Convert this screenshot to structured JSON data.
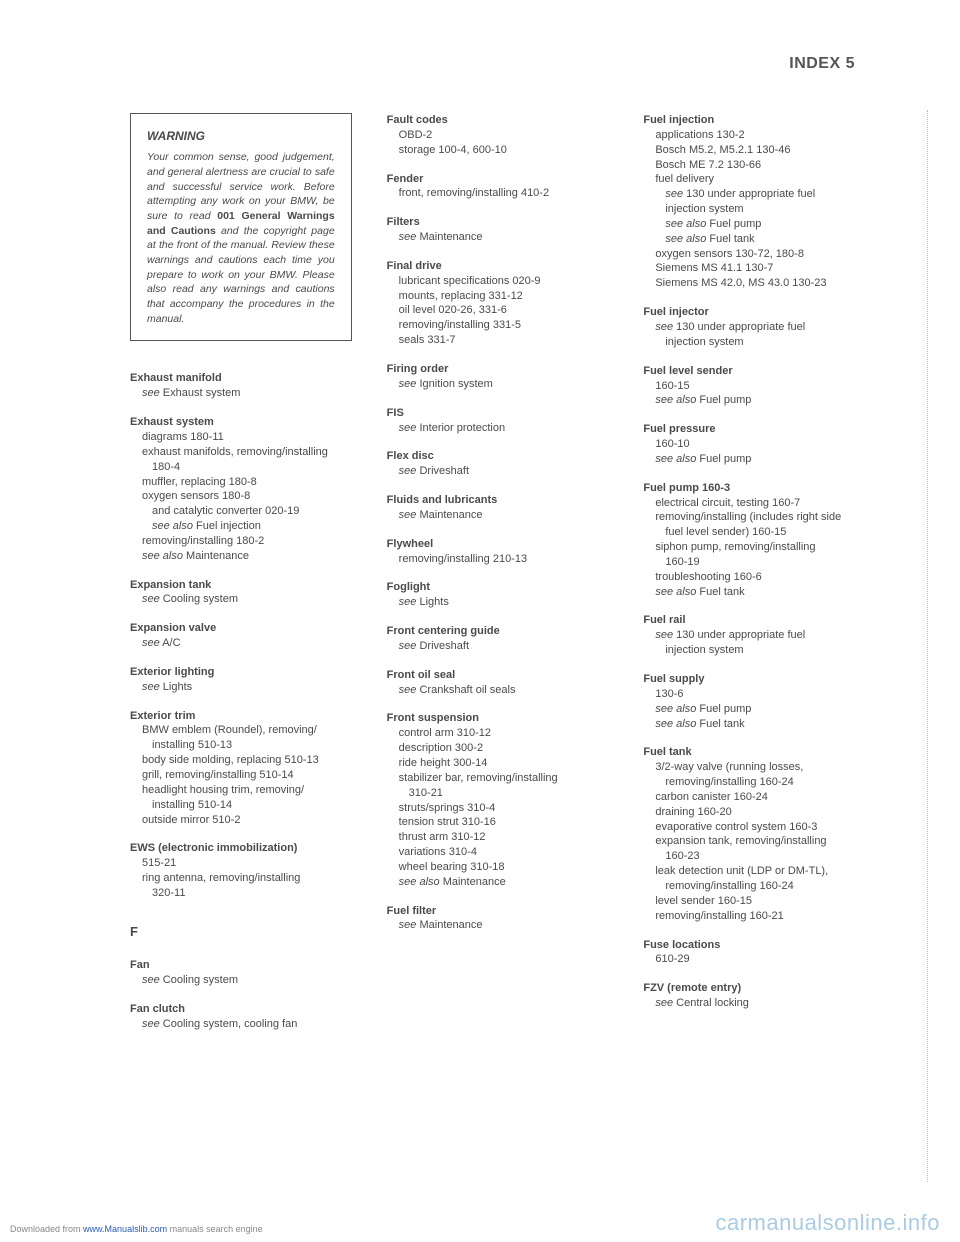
{
  "header": {
    "text": "INDEX  5"
  },
  "warning": {
    "title": "WARNING",
    "text_pre": "Your common sense, good judgement, and general alertness are crucial to safe and successful service work. Before attempting any work on your BMW, be sure to read ",
    "bold1": "001 General Warnings and Cautions",
    "text_post": " and the copyright page at the front of the manual. Review these warnings and cautions each time you prepare to work on your BMW. Please also read any warnings and cautions that accompany the procedures in the manual."
  },
  "col1": [
    {
      "t": "Exhaust manifold",
      "lines": [
        {
          "txt": "see",
          "ital": true,
          "cont": " Exhaust system"
        }
      ]
    },
    {
      "t": "Exhaust system",
      "lines": [
        {
          "txt": "diagrams 180-11"
        },
        {
          "txt": "exhaust manifolds, removing/installing"
        },
        {
          "txt": "180-4",
          "indent": 2
        },
        {
          "txt": "muffler, replacing 180-8"
        },
        {
          "txt": "oxygen sensors 180-8"
        },
        {
          "txt": "and catalytic converter 020-19",
          "indent": 2
        },
        {
          "txt": "see also",
          "ital": true,
          "cont": " Fuel injection",
          "indent": 2
        },
        {
          "txt": "removing/installing 180-2"
        },
        {
          "txt": "see also",
          "ital": true,
          "cont": " Maintenance"
        }
      ]
    },
    {
      "t": "Expansion tank",
      "lines": [
        {
          "txt": "see",
          "ital": true,
          "cont": " Cooling system"
        }
      ]
    },
    {
      "t": "Expansion valve",
      "lines": [
        {
          "txt": "see",
          "ital": true,
          "cont": " A/C"
        }
      ]
    },
    {
      "t": "Exterior lighting",
      "lines": [
        {
          "txt": "see",
          "ital": true,
          "cont": " Lights"
        }
      ]
    },
    {
      "t": "Exterior trim",
      "lines": [
        {
          "txt": "BMW emblem (Roundel), removing/"
        },
        {
          "txt": "installing 510-13",
          "indent": 2
        },
        {
          "txt": "body side molding, replacing 510-13"
        },
        {
          "txt": "grill, removing/installing 510-14"
        },
        {
          "txt": "headlight housing trim, removing/"
        },
        {
          "txt": "installing 510-14",
          "indent": 2
        },
        {
          "txt": "outside mirror 510-2"
        }
      ]
    },
    {
      "t": "EWS (electronic immobilization)",
      "lines": [
        {
          "txt": "515-21"
        },
        {
          "txt": "ring antenna, removing/installing"
        },
        {
          "txt": "320-11",
          "indent": 2
        }
      ]
    }
  ],
  "col1_f": [
    {
      "t": "Fan",
      "lines": [
        {
          "txt": "see",
          "ital": true,
          "cont": " Cooling system"
        }
      ]
    },
    {
      "t": "Fan clutch",
      "lines": [
        {
          "txt": "see",
          "ital": true,
          "cont": " Cooling system, cooling fan"
        }
      ]
    }
  ],
  "col2": [
    {
      "t": "Fault codes",
      "lines": [
        {
          "txt": "OBD-2"
        },
        {
          "txt": "storage 100-4, 600-10"
        }
      ]
    },
    {
      "t": "Fender",
      "lines": [
        {
          "txt": "front, removing/installing 410-2"
        }
      ]
    },
    {
      "t": "Filters",
      "lines": [
        {
          "txt": "see",
          "ital": true,
          "cont": " Maintenance"
        }
      ]
    },
    {
      "t": "Final drive",
      "lines": [
        {
          "txt": "lubricant specifications 020-9"
        },
        {
          "txt": "mounts, replacing 331-12"
        },
        {
          "txt": "oil level 020-26, 331-6"
        },
        {
          "txt": "removing/installing 331-5"
        },
        {
          "txt": "seals 331-7"
        }
      ]
    },
    {
      "t": "Firing order",
      "lines": [
        {
          "txt": "see",
          "ital": true,
          "cont": " Ignition system"
        }
      ]
    },
    {
      "t": "FIS",
      "lines": [
        {
          "txt": "see",
          "ital": true,
          "cont": " Interior protection"
        }
      ]
    },
    {
      "t": "Flex disc",
      "lines": [
        {
          "txt": "see",
          "ital": true,
          "cont": " Driveshaft"
        }
      ]
    },
    {
      "t": "Fluids and lubricants",
      "lines": [
        {
          "txt": "see",
          "ital": true,
          "cont": " Maintenance"
        }
      ]
    },
    {
      "t": "Flywheel",
      "lines": [
        {
          "txt": "removing/installing 210-13"
        }
      ]
    },
    {
      "t": "Foglight",
      "lines": [
        {
          "txt": "see",
          "ital": true,
          "cont": " Lights"
        }
      ]
    },
    {
      "t": "Front centering guide",
      "lines": [
        {
          "txt": "see",
          "ital": true,
          "cont": " Driveshaft"
        }
      ]
    },
    {
      "t": "Front oil seal",
      "lines": [
        {
          "txt": "see",
          "ital": true,
          "cont": " Crankshaft oil seals"
        }
      ]
    },
    {
      "t": "Front suspension",
      "lines": [
        {
          "txt": "control arm 310-12"
        },
        {
          "txt": "description 300-2"
        },
        {
          "txt": "ride height 300-14"
        },
        {
          "txt": "stabilizer bar, removing/installing"
        },
        {
          "txt": "310-21",
          "indent": 2
        },
        {
          "txt": "struts/springs 310-4"
        },
        {
          "txt": "tension strut 310-16"
        },
        {
          "txt": "thrust arm 310-12"
        },
        {
          "txt": "variations 310-4"
        },
        {
          "txt": "wheel bearing 310-18"
        },
        {
          "txt": "see also",
          "ital": true,
          "cont": " Maintenance"
        }
      ]
    },
    {
      "t": "Fuel filter",
      "lines": [
        {
          "txt": "see",
          "ital": true,
          "cont": " Maintenance"
        }
      ]
    }
  ],
  "col3": [
    {
      "t": "Fuel injection",
      "lines": [
        {
          "txt": "applications 130-2"
        },
        {
          "txt": "Bosch M5.2, M5.2.1 130-46"
        },
        {
          "txt": "Bosch ME 7.2 130-66"
        },
        {
          "txt": "fuel delivery"
        },
        {
          "txt": "see",
          "ital": true,
          "cont": " 130 under appropriate fuel",
          "indent": 2
        },
        {
          "txt": "injection system",
          "indent": 2
        },
        {
          "txt": "see also",
          "ital": true,
          "cont": " Fuel pump",
          "indent": 2
        },
        {
          "txt": "see also",
          "ital": true,
          "cont": " Fuel tank",
          "indent": 2
        },
        {
          "txt": "oxygen sensors 130-72, 180-8"
        },
        {
          "txt": "Siemens MS 41.1 130-7"
        },
        {
          "txt": "Siemens MS 42.0, MS 43.0 130-23"
        }
      ]
    },
    {
      "t": "Fuel injector",
      "lines": [
        {
          "txt": "see",
          "ital": true,
          "cont": " 130 under appropriate fuel"
        },
        {
          "txt": "injection system",
          "indent": 2
        }
      ]
    },
    {
      "t": "Fuel level sender",
      "lines": [
        {
          "txt": "160-15"
        },
        {
          "txt": "see also",
          "ital": true,
          "cont": " Fuel pump"
        }
      ]
    },
    {
      "t": "Fuel pressure",
      "lines": [
        {
          "txt": "160-10"
        },
        {
          "txt": "see also",
          "ital": true,
          "cont": " Fuel pump"
        }
      ]
    },
    {
      "t": "Fuel pump 160-3",
      "lines": [
        {
          "txt": "electrical circuit, testing 160-7"
        },
        {
          "txt": "removing/installing (includes right side"
        },
        {
          "txt": "fuel level sender) 160-15",
          "indent": 2
        },
        {
          "txt": "siphon pump, removing/installing"
        },
        {
          "txt": "160-19",
          "indent": 2
        },
        {
          "txt": "troubleshooting 160-6"
        },
        {
          "txt": "see also",
          "ital": true,
          "cont": " Fuel tank"
        }
      ]
    },
    {
      "t": "Fuel rail",
      "lines": [
        {
          "txt": "see",
          "ital": true,
          "cont": " 130 under appropriate fuel"
        },
        {
          "txt": "injection system",
          "indent": 2
        }
      ]
    },
    {
      "t": "Fuel supply",
      "lines": [
        {
          "txt": "130-6"
        },
        {
          "txt": "see also",
          "ital": true,
          "cont": " Fuel pump"
        },
        {
          "txt": "see also",
          "ital": true,
          "cont": " Fuel tank"
        }
      ]
    },
    {
      "t": "Fuel tank",
      "lines": [
        {
          "txt": "3/2-way valve (running losses,"
        },
        {
          "txt": "removing/installing 160-24",
          "indent": 2
        },
        {
          "txt": "carbon canister 160-24"
        },
        {
          "txt": "draining 160-20"
        },
        {
          "txt": "evaporative control system 160-3"
        },
        {
          "txt": "expansion tank, removing/installing"
        },
        {
          "txt": "160-23",
          "indent": 2
        },
        {
          "txt": "leak detection unit (LDP or DM-TL),"
        },
        {
          "txt": "removing/installing 160-24",
          "indent": 2
        },
        {
          "txt": "level sender 160-15"
        },
        {
          "txt": "removing/installing 160-21"
        }
      ]
    },
    {
      "t": "Fuse locations",
      "lines": [
        {
          "txt": "610-29"
        }
      ]
    },
    {
      "t": "FZV (remote entry)",
      "lines": [
        {
          "txt": "see",
          "ital": true,
          "cont": " Central locking"
        }
      ]
    }
  ],
  "section_letter": "F",
  "footer": {
    "pre": "Downloaded from ",
    "link": "www.Manualslib.com",
    "post": " manuals search engine"
  },
  "watermark": "carmanualsonline.info"
}
